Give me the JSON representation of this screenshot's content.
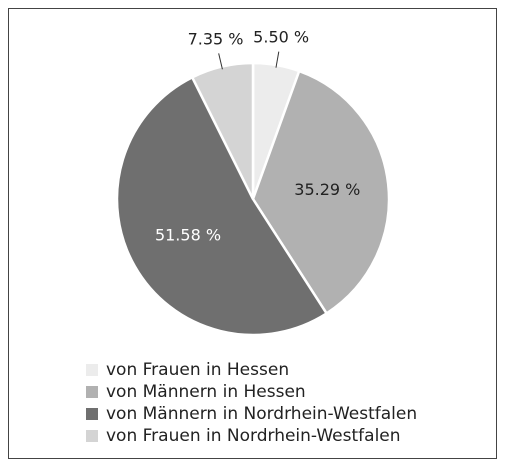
{
  "chart_data": {
    "type": "pie",
    "categories": [
      "von Frauen in Hessen",
      "von Männern in Hessen",
      "von Männern in Nordrhein-Westfalen",
      "von Frauen in Nordrhein-Westfalen"
    ],
    "values": [
      5.5,
      35.29,
      51.58,
      7.35
    ],
    "value_labels": [
      "5.50 %",
      "35.29 %",
      "51.58 %",
      "7.35 %"
    ],
    "colors": [
      "#ececec",
      "#b1b1b1",
      "#6f6f6f",
      "#d4d4d4"
    ],
    "legend": "bottom"
  }
}
